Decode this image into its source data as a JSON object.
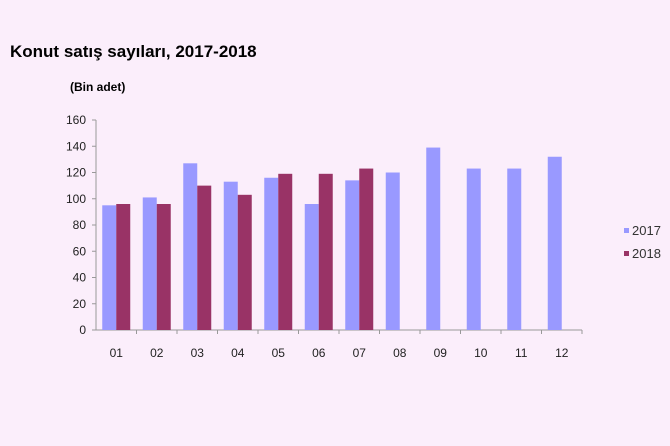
{
  "chart_data": {
    "type": "bar",
    "title": "Konut satış sayıları, 2017-2018",
    "ylabel": "(Bin adet)",
    "xlabel": "",
    "categories": [
      "01",
      "02",
      "03",
      "04",
      "05",
      "06",
      "07",
      "08",
      "09",
      "10",
      "11",
      "12"
    ],
    "series": [
      {
        "name": "2017",
        "color": "#9999ff",
        "values": [
          95,
          101,
          127,
          113,
          116,
          96,
          114,
          120,
          139,
          123,
          123,
          132
        ]
      },
      {
        "name": "2018",
        "color": "#993366",
        "values": [
          96,
          96,
          110,
          103,
          119,
          119,
          123,
          null,
          null,
          null,
          null,
          null
        ]
      }
    ],
    "ylim": [
      0,
      160
    ],
    "yticks": [
      0,
      20,
      40,
      60,
      80,
      100,
      120,
      140,
      160
    ],
    "grid": false,
    "legend": "right"
  }
}
